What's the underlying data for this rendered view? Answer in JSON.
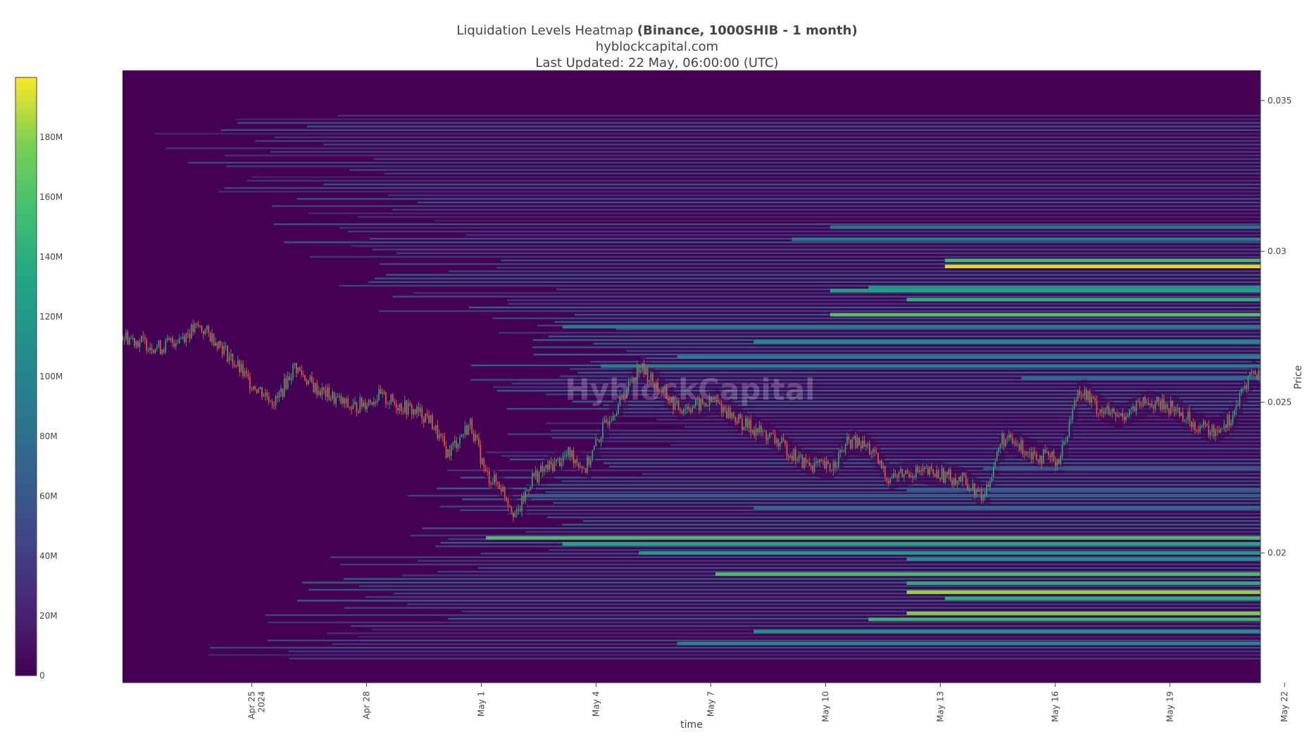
{
  "header": {
    "title_main": "Liquidation Levels Heatmap ",
    "title_bold": "(Binance, 1000SHIB - 1 month)",
    "subtitle": "hyblockcapital.com",
    "updated": "Last Updated: 22 May, 06:00:00 (UTC)"
  },
  "watermark": "HyblockCapital",
  "chart_data": {
    "type": "heatmap",
    "title": "Liquidation Levels Heatmap (Binance, 1000SHIB - 1 month)",
    "xlabel": "time",
    "ylabel": "Price",
    "x_ticks": [
      "Apr 25",
      "Apr 28",
      "May 1",
      "May 4",
      "May 7",
      "May 10",
      "May 13",
      "May 16",
      "May 19",
      "May 22"
    ],
    "x_tick_year": "2024",
    "x_range": [
      21.5,
      51.25
    ],
    "y_ticks": [
      "0.02",
      "0.025",
      "0.03",
      "0.035"
    ],
    "y_tick_values": [
      0.02,
      0.025,
      0.03,
      0.035
    ],
    "ylim": [
      0.0157,
      0.036
    ],
    "colorscale": "viridis",
    "colorbar": {
      "ticks": [
        "0",
        "20M",
        "40M",
        "60M",
        "80M",
        "100M",
        "120M",
        "140M",
        "160M",
        "180M"
      ],
      "tick_values": [
        0,
        20,
        40,
        60,
        80,
        100,
        120,
        140,
        160,
        180
      ],
      "range": [
        0,
        200
      ],
      "unit": "M"
    },
    "price_series": {
      "name": "1000SHIB",
      "x": [
        21.5,
        22.5,
        23.5,
        24.0,
        24.8,
        25.5,
        26.0,
        26.5,
        27.5,
        28.2,
        29.5,
        30.0,
        30.6,
        31.0,
        31.4,
        31.8,
        32.2,
        32.6,
        33.2,
        33.6,
        34.2,
        34.5,
        35.0,
        36.0,
        37.0,
        37.7,
        38.5,
        39.3,
        40.0,
        40.5,
        41.0,
        41.5,
        42.2,
        42.9,
        43.5,
        44.0,
        44.5,
        45.0,
        45.5,
        46.0,
        46.5,
        47.0,
        47.5,
        48.3,
        49.0,
        49.5,
        50.0,
        50.5,
        51.0,
        51.25
      ],
      "y": [
        0.0272,
        0.0268,
        0.0275,
        0.027,
        0.0257,
        0.025,
        0.0262,
        0.0255,
        0.0248,
        0.0252,
        0.0245,
        0.0233,
        0.0243,
        0.0226,
        0.0222,
        0.0212,
        0.0225,
        0.0228,
        0.0233,
        0.0228,
        0.0245,
        0.025,
        0.0262,
        0.0248,
        0.025,
        0.0243,
        0.0238,
        0.023,
        0.0228,
        0.0237,
        0.0235,
        0.0225,
        0.0227,
        0.0226,
        0.0224,
        0.0218,
        0.0238,
        0.0235,
        0.0232,
        0.0231,
        0.0255,
        0.0248,
        0.0245,
        0.025,
        0.0248,
        0.0243,
        0.024,
        0.0245,
        0.026,
        0.0258
      ],
      "up_color": "#2e9e7a",
      "down_color": "#e0543f"
    },
    "bands": [
      {
        "price": 0.0295,
        "start": 43.0,
        "intensity": 0.98
      },
      {
        "price": 0.0297,
        "start": 43.0,
        "intensity": 0.78
      },
      {
        "price": 0.0279,
        "start": 40.0,
        "intensity": 0.82
      },
      {
        "price": 0.0284,
        "start": 42.0,
        "intensity": 0.72
      },
      {
        "price": 0.0287,
        "start": 40.0,
        "intensity": 0.66
      },
      {
        "price": 0.0288,
        "start": 41.0,
        "intensity": 0.6
      },
      {
        "price": 0.0304,
        "start": 39.0,
        "intensity": 0.5
      },
      {
        "price": 0.0308,
        "start": 40.0,
        "intensity": 0.45
      },
      {
        "price": 0.027,
        "start": 38.0,
        "intensity": 0.55
      },
      {
        "price": 0.0275,
        "start": 33.0,
        "intensity": 0.48
      },
      {
        "price": 0.0265,
        "start": 36.0,
        "intensity": 0.5
      },
      {
        "price": 0.0262,
        "start": 34.0,
        "intensity": 0.5
      },
      {
        "price": 0.0258,
        "start": 45.0,
        "intensity": 0.4
      },
      {
        "price": 0.0205,
        "start": 31.0,
        "intensity": 0.8
      },
      {
        "price": 0.0203,
        "start": 33.0,
        "intensity": 0.68
      },
      {
        "price": 0.02,
        "start": 35.0,
        "intensity": 0.64
      },
      {
        "price": 0.0198,
        "start": 42.0,
        "intensity": 0.58
      },
      {
        "price": 0.0193,
        "start": 37.0,
        "intensity": 0.8
      },
      {
        "price": 0.019,
        "start": 42.0,
        "intensity": 0.7
      },
      {
        "price": 0.0187,
        "start": 42.0,
        "intensity": 0.92
      },
      {
        "price": 0.0185,
        "start": 43.0,
        "intensity": 0.72
      },
      {
        "price": 0.018,
        "start": 42.0,
        "intensity": 0.9
      },
      {
        "price": 0.0178,
        "start": 41.0,
        "intensity": 0.75
      },
      {
        "price": 0.0174,
        "start": 38.0,
        "intensity": 0.6
      },
      {
        "price": 0.017,
        "start": 36.0,
        "intensity": 0.52
      },
      {
        "price": 0.0215,
        "start": 38.0,
        "intensity": 0.4
      },
      {
        "price": 0.0219,
        "start": 32.0,
        "intensity": 0.35
      },
      {
        "price": 0.0221,
        "start": 42.0,
        "intensity": 0.35
      },
      {
        "price": 0.0228,
        "start": 44.0,
        "intensity": 0.3
      }
    ]
  }
}
